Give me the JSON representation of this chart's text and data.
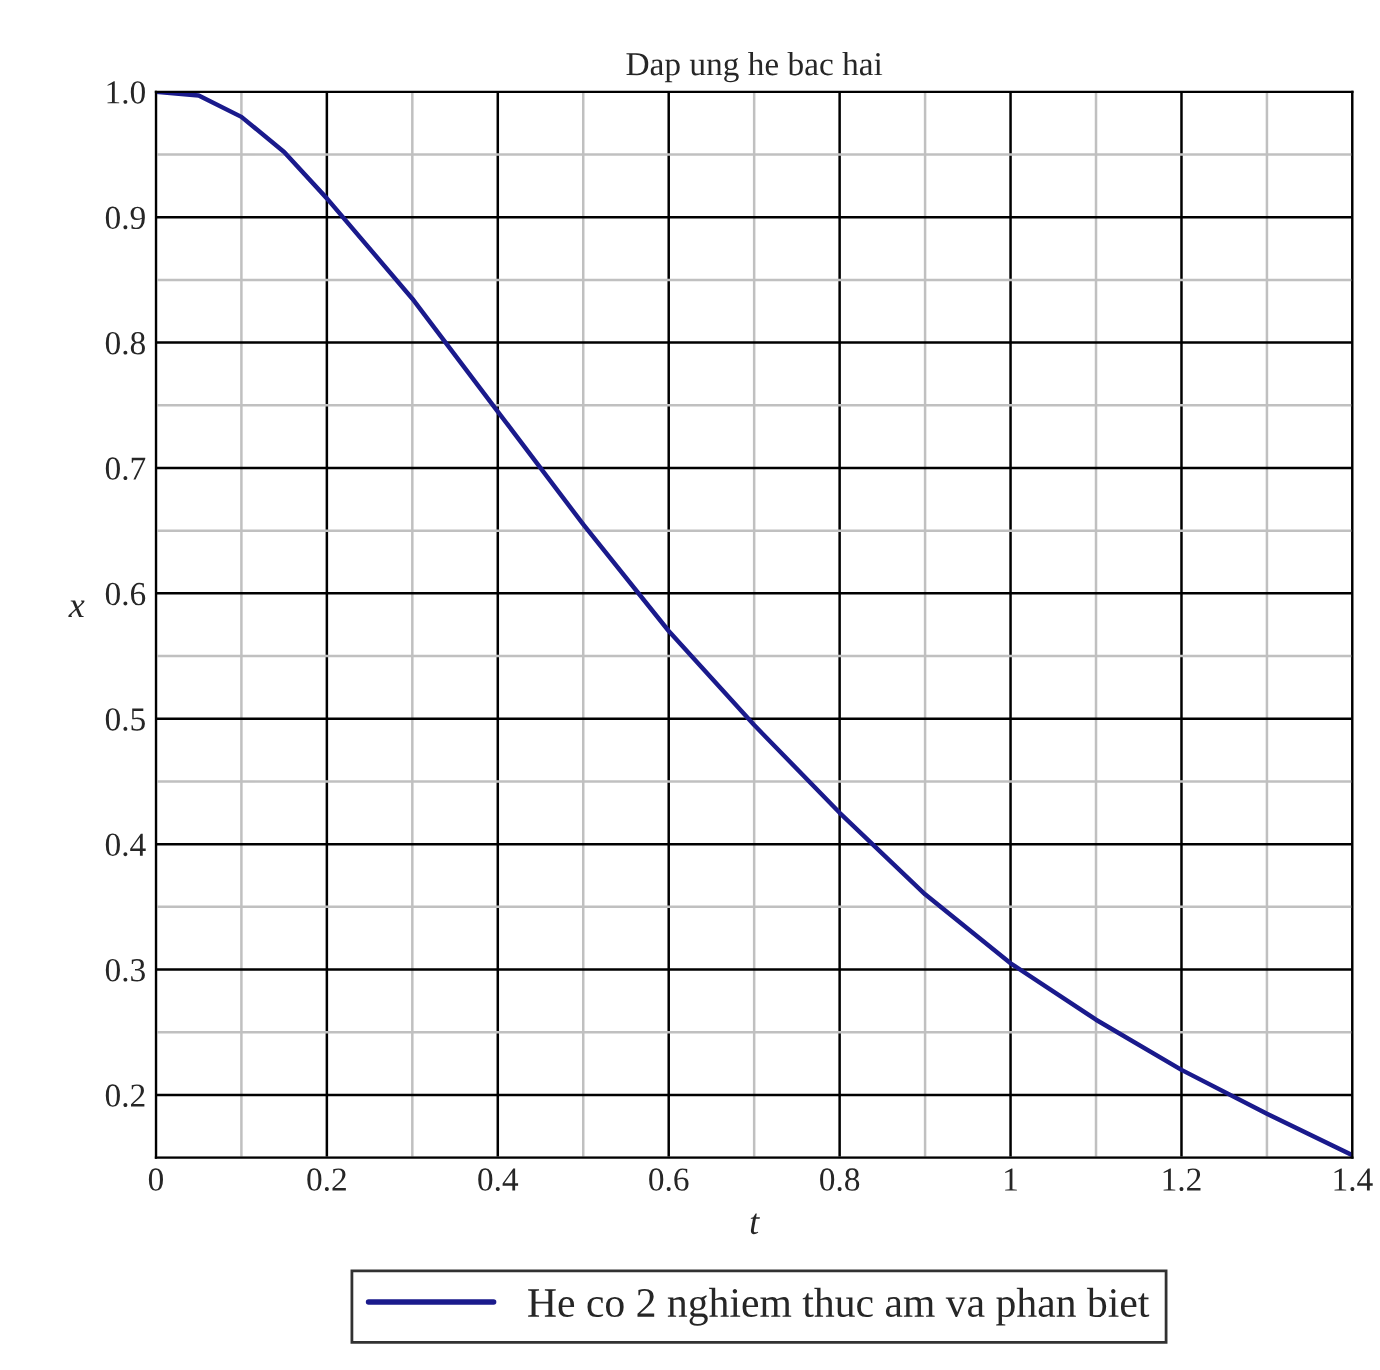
{
  "chart_data": {
    "type": "line",
    "title": "Dap ung he bac hai",
    "xlabel": "t",
    "ylabel": "x",
    "x": [
      0,
      0.05,
      0.1,
      0.15,
      0.2,
      0.3,
      0.4,
      0.5,
      0.6,
      0.7,
      0.8,
      0.9,
      1.0,
      1.1,
      1.2,
      1.3,
      1.4
    ],
    "series": [
      {
        "name": "He co 2 nghiem thuc am va phan biet",
        "color": "#1a1a8c",
        "values": [
          1.0,
          0.997,
          0.98,
          0.952,
          0.915,
          0.835,
          0.745,
          0.655,
          0.57,
          0.495,
          0.425,
          0.36,
          0.305,
          0.26,
          0.22,
          0.185,
          0.152
        ]
      }
    ],
    "xlim": [
      0,
      1.4
    ],
    "ylim": [
      0.15,
      1.0
    ],
    "xticks": [
      0,
      0.2,
      0.4,
      0.6,
      0.8,
      1,
      1.2,
      1.4
    ],
    "yticks": [
      0.2,
      0.3,
      0.4,
      0.5,
      0.6,
      0.7,
      0.8,
      0.9,
      {
        "value": 1.0,
        "label": "1.0"
      }
    ],
    "grid": true,
    "legend": "bottom",
    "line_style": "solid",
    "marker": "none"
  }
}
